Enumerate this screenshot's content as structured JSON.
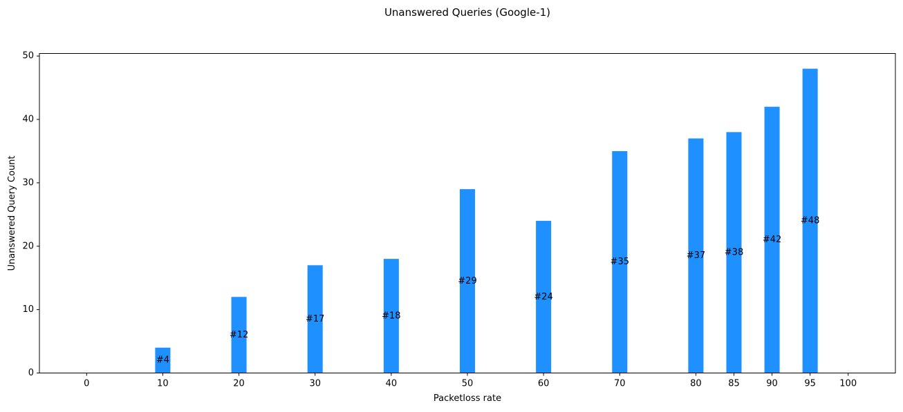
{
  "chart_data": {
    "type": "bar",
    "title": "Unanswered Queries (Google-1)",
    "xlabel": "Packetloss rate",
    "ylabel": "Unanswered Query Count",
    "x": [
      0,
      10,
      20,
      30,
      40,
      50,
      60,
      70,
      80,
      85,
      90,
      95,
      100
    ],
    "x_ticks": [
      "0",
      "10",
      "20",
      "30",
      "40",
      "50",
      "60",
      "70",
      "80",
      "85",
      "90",
      "95",
      "100"
    ],
    "values": [
      0,
      4,
      12,
      17,
      18,
      29,
      24,
      35,
      37,
      38,
      42,
      48,
      0
    ],
    "data_labels": [
      "",
      "#4",
      "#12",
      "#17",
      "#18",
      "#29",
      "#24",
      "#35",
      "#37",
      "#38",
      "#42",
      "#48",
      ""
    ],
    "y_ticks": [
      "0",
      "10",
      "20",
      "30",
      "40",
      "50"
    ],
    "ylim": [
      0,
      50.4
    ],
    "xlim": [
      -6.2,
      106.2
    ],
    "bar_width": 2,
    "grid": false,
    "bar_color": "#1e90ff"
  }
}
